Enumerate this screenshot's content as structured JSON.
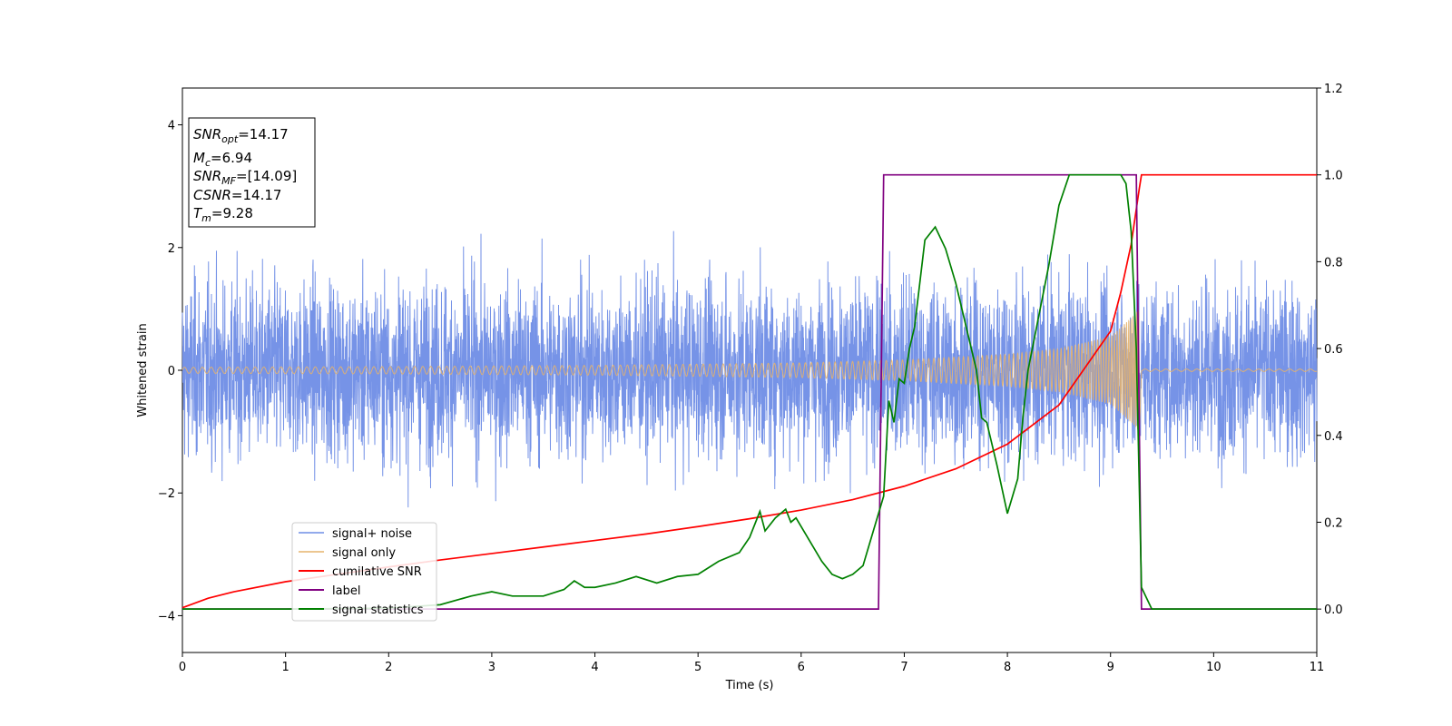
{
  "chart_data": {
    "type": "line",
    "xlabel": "Time (s)",
    "ylabel": "Whitened strain",
    "xlim": [
      0,
      11
    ],
    "ylim_left": [
      -4.6,
      4.6
    ],
    "ylim_right": [
      -0.1,
      1.2
    ],
    "x_ticks": [
      "0",
      "1",
      "2",
      "3",
      "4",
      "5",
      "6",
      "7",
      "8",
      "9",
      "10",
      "11"
    ],
    "y_ticks_left": [
      "−4",
      "−2",
      "0",
      "2",
      "4"
    ],
    "y_ticks_right": [
      "0.0",
      "0.2",
      "0.4",
      "0.6",
      "0.8",
      "1.0",
      "1.2"
    ],
    "grid": false,
    "legend_position": "lower-left",
    "annotation": {
      "lines": [
        {
          "main": "SNR",
          "sub": "opt",
          "value": "=14.17"
        },
        {
          "main": "M",
          "sub": "c",
          "value": "=6.94"
        },
        {
          "main": "SNR",
          "sub": "MF",
          "value": "=[14.09]"
        },
        {
          "main": "CSNR",
          "sub": "",
          "value": "=14.17"
        },
        {
          "main": "T",
          "sub": "m",
          "value": "=9.28"
        }
      ]
    },
    "series": [
      {
        "name": "signal+ noise",
        "axis": "left",
        "color": "#6f8de6",
        "description_values": {
          "amplitude_std": 0.95,
          "start": 0,
          "end": 11
        }
      },
      {
        "name": "signal only",
        "axis": "left",
        "color": "#e6b36b",
        "amplitude_profile": {
          "x": [
            0,
            2,
            4,
            6,
            7,
            8,
            8.5,
            9,
            9.2,
            9.28,
            9.3,
            11
          ],
          "y": [
            0.05,
            0.06,
            0.08,
            0.12,
            0.17,
            0.26,
            0.35,
            0.55,
            0.85,
            1.0,
            0.02,
            0.02
          ]
        }
      },
      {
        "name": "cumilative SNR",
        "axis": "right",
        "color": "#ff0000",
        "x": [
          0,
          0.25,
          0.5,
          1,
          1.5,
          2,
          2.5,
          3,
          3.5,
          4,
          4.5,
          5,
          5.5,
          6,
          6.5,
          7,
          7.5,
          8,
          8.5,
          9,
          9.1,
          9.2,
          9.28,
          9.3,
          11
        ],
        "y": [
          0.003,
          0.025,
          0.04,
          0.063,
          0.08,
          0.097,
          0.113,
          0.128,
          0.143,
          0.158,
          0.173,
          0.19,
          0.208,
          0.228,
          0.252,
          0.283,
          0.323,
          0.38,
          0.47,
          0.64,
          0.73,
          0.84,
          0.97,
          1.0,
          1.0
        ]
      },
      {
        "name": "label",
        "axis": "right",
        "color": "#800080",
        "x": [
          0,
          6.75,
          6.8,
          9.25,
          9.3,
          11
        ],
        "y": [
          0.0,
          0.0,
          1.0,
          1.0,
          0.0,
          0.0
        ]
      },
      {
        "name": "signal statistics",
        "axis": "right",
        "color": "#008000",
        "x": [
          0,
          1,
          2,
          2.5,
          2.8,
          3,
          3.2,
          3.5,
          3.7,
          3.8,
          3.9,
          4.0,
          4.2,
          4.4,
          4.6,
          4.8,
          5.0,
          5.2,
          5.4,
          5.5,
          5.6,
          5.65,
          5.75,
          5.85,
          5.9,
          5.95,
          6.05,
          6.2,
          6.3,
          6.4,
          6.5,
          6.6,
          6.65,
          6.7,
          6.75,
          6.8,
          6.85,
          6.9,
          6.95,
          7.0,
          7.05,
          7.1,
          7.2,
          7.3,
          7.4,
          7.5,
          7.6,
          7.7,
          7.75,
          7.8,
          7.9,
          8.0,
          8.1,
          8.15,
          8.2,
          8.3,
          8.4,
          8.5,
          8.6,
          8.8,
          9.0,
          9.1,
          9.15,
          9.2,
          9.25,
          9.3,
          9.4,
          11
        ],
        "y": [
          0.0,
          0.0,
          0.002,
          0.01,
          0.03,
          0.04,
          0.03,
          0.03,
          0.045,
          0.065,
          0.05,
          0.05,
          0.06,
          0.075,
          0.06,
          0.075,
          0.08,
          0.11,
          0.13,
          0.165,
          0.225,
          0.18,
          0.21,
          0.23,
          0.2,
          0.21,
          0.17,
          0.11,
          0.08,
          0.07,
          0.08,
          0.1,
          0.14,
          0.18,
          0.22,
          0.26,
          0.48,
          0.43,
          0.53,
          0.52,
          0.6,
          0.65,
          0.85,
          0.88,
          0.83,
          0.75,
          0.65,
          0.55,
          0.44,
          0.43,
          0.33,
          0.22,
          0.3,
          0.44,
          0.55,
          0.67,
          0.79,
          0.93,
          1.0,
          1.0,
          1.0,
          1.0,
          0.98,
          0.87,
          0.6,
          0.05,
          0.0,
          0.0
        ]
      }
    ]
  }
}
